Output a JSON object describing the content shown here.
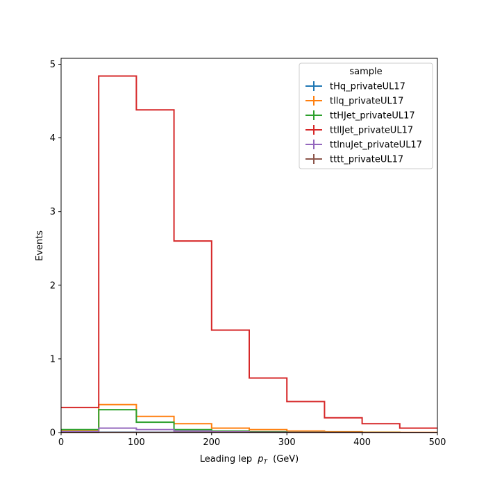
{
  "chart_data": {
    "type": "histogram-step",
    "title": "",
    "xlabel": "Leading lep",
    "xlabel_symbol": "p",
    "xlabel_subscript": "T",
    "xlabel_unit": "(GeV)",
    "ylabel": "Events",
    "xlim": [
      0,
      500
    ],
    "ylim": [
      0,
      5.08
    ],
    "xticks": [
      0,
      100,
      200,
      300,
      400,
      500
    ],
    "yticks": [
      0,
      1,
      2,
      3,
      4,
      5
    ],
    "grid": false,
    "legend": {
      "title": "sample",
      "placement": "top-right"
    },
    "bin_edges": [
      0,
      50,
      100,
      150,
      200,
      250,
      300,
      350,
      400,
      450,
      500
    ],
    "series": [
      {
        "name": "tHq_privateUL17",
        "color": "#1f77b4",
        "values": [
          0.0,
          0.005,
          0.004,
          0.003,
          0.002,
          0.001,
          0.001,
          0.0,
          0.0,
          0.0
        ]
      },
      {
        "name": "tllq_privateUL17",
        "color": "#ff7f0e",
        "values": [
          0.02,
          0.38,
          0.22,
          0.12,
          0.06,
          0.04,
          0.02,
          0.01,
          0.005,
          0.003
        ]
      },
      {
        "name": "ttHJet_privateUL17",
        "color": "#2ca02c",
        "values": [
          0.04,
          0.31,
          0.14,
          0.04,
          0.02,
          0.01,
          0.005,
          0.002,
          0.001,
          0.0
        ]
      },
      {
        "name": "ttllJet_privateUL17",
        "color": "#d62728",
        "values": [
          0.34,
          4.84,
          4.38,
          2.6,
          1.39,
          0.74,
          0.42,
          0.2,
          0.12,
          0.06
        ]
      },
      {
        "name": "ttlnuJet_privateUL17",
        "color": "#9467bd",
        "values": [
          0.01,
          0.06,
          0.04,
          0.02,
          0.01,
          0.005,
          0.002,
          0.001,
          0.0,
          0.0
        ]
      },
      {
        "name": "tttt_privateUL17",
        "color": "#8c564b",
        "values": [
          0.0,
          0.003,
          0.003,
          0.003,
          0.002,
          0.002,
          0.001,
          0.001,
          0.0,
          0.0
        ]
      }
    ]
  }
}
